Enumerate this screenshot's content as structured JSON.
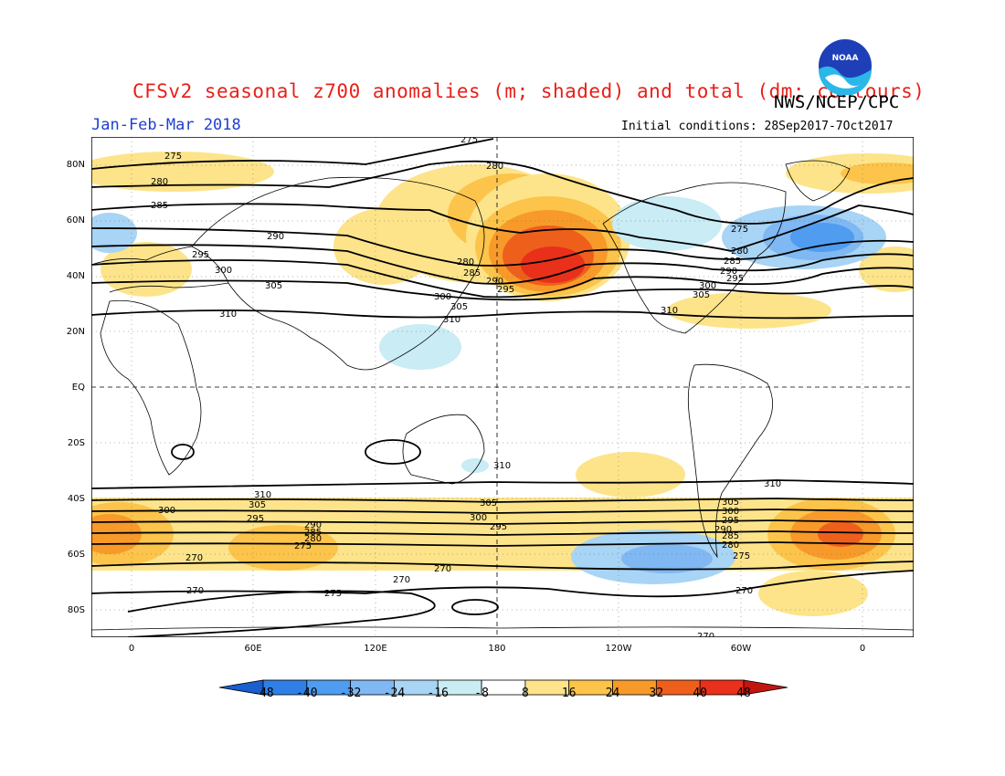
{
  "header": {
    "title": "CFSv2 seasonal z700 anomalies (m; shaded) and total (dm; contours)",
    "agency": "NWS/NCEP/CPC",
    "season": "Jan-Feb-Mar 2018",
    "initial_conditions": "Initial conditions: 28Sep2017-7Oct2017",
    "logo_text": "NOAA"
  },
  "axes": {
    "lat_labels": [
      "80N",
      "60N",
      "40N",
      "20N",
      "EQ",
      "20S",
      "40S",
      "60S",
      "80S"
    ],
    "lon_labels": [
      "0",
      "60E",
      "120E",
      "180",
      "120W",
      "60W",
      "0"
    ]
  },
  "colorbar": {
    "labels": [
      "-48",
      "-40",
      "-32",
      "-24",
      "-16",
      "-8",
      "8",
      "16",
      "24",
      "32",
      "40",
      "48"
    ],
    "colors": [
      "#1a5ecf",
      "#2f7fe6",
      "#4f9cf0",
      "#7fb8f2",
      "#a8d4f5",
      "#c9ecf5",
      "#ffffff",
      "#fde48a",
      "#fcc44a",
      "#f79a2a",
      "#ef5f1c",
      "#e8301a",
      "#c4140f"
    ]
  },
  "contours": {
    "labels": [
      "275",
      "280",
      "285",
      "290",
      "295",
      "300",
      "305",
      "310",
      "270"
    ]
  },
  "chart_data": {
    "type": "heatmap",
    "title": "CFSv2 seasonal z700 anomalies (m; shaded) and total (dm; contours)",
    "variable": "700 hPa geopotential height",
    "anomaly_units": "m",
    "contour_units": "dm",
    "anomaly_levels": [
      -48,
      -40,
      -32,
      -24,
      -16,
      -8,
      8,
      16,
      24,
      32,
      40,
      48
    ],
    "contour_levels": [
      270,
      275,
      280,
      285,
      290,
      295,
      300,
      305,
      310
    ],
    "lat_range": [
      -90,
      90
    ],
    "lon_range": [
      -20,
      380
    ]
  }
}
